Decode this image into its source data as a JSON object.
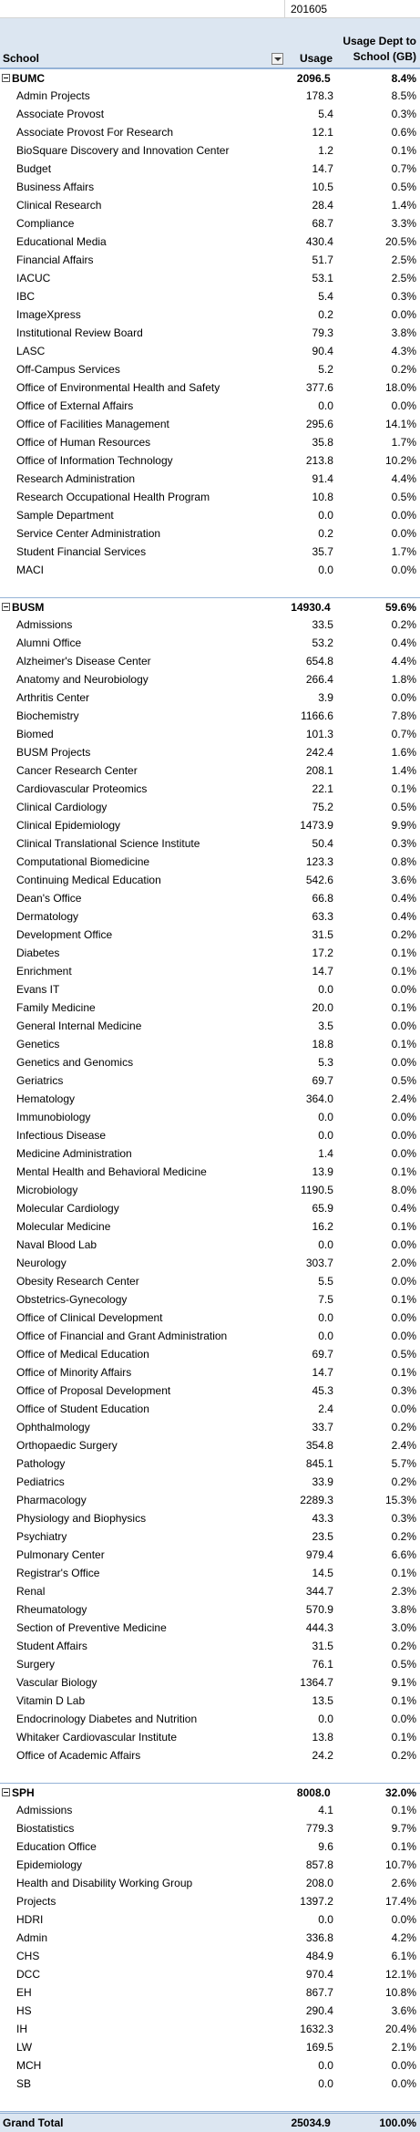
{
  "header": {
    "period": "201605",
    "school": "School",
    "usage": "Usage",
    "pct": "Usage Dept to School (GB)"
  },
  "groups": [
    {
      "name": "BUMC",
      "usage": "2096.5",
      "pct": "8.4%",
      "rows": [
        {
          "name": "Admin Projects",
          "usage": "178.3",
          "pct": "8.5%"
        },
        {
          "name": "Associate Provost",
          "usage": "5.4",
          "pct": "0.3%"
        },
        {
          "name": "Associate Provost For Research",
          "usage": "12.1",
          "pct": "0.6%"
        },
        {
          "name": "BioSquare Discovery and Innovation Center",
          "usage": "1.2",
          "pct": "0.1%"
        },
        {
          "name": "Budget",
          "usage": "14.7",
          "pct": "0.7%"
        },
        {
          "name": "Business Affairs",
          "usage": "10.5",
          "pct": "0.5%"
        },
        {
          "name": "Clinical Research",
          "usage": "28.4",
          "pct": "1.4%"
        },
        {
          "name": "Compliance",
          "usage": "68.7",
          "pct": "3.3%"
        },
        {
          "name": "Educational Media",
          "usage": "430.4",
          "pct": "20.5%"
        },
        {
          "name": "Financial Affairs",
          "usage": "51.7",
          "pct": "2.5%"
        },
        {
          "name": "IACUC",
          "usage": "53.1",
          "pct": "2.5%"
        },
        {
          "name": "IBC",
          "usage": "5.4",
          "pct": "0.3%"
        },
        {
          "name": "ImageXpress",
          "usage": "0.2",
          "pct": "0.0%"
        },
        {
          "name": "Institutional Review Board",
          "usage": "79.3",
          "pct": "3.8%"
        },
        {
          "name": "LASC",
          "usage": "90.4",
          "pct": "4.3%"
        },
        {
          "name": "Off-Campus Services",
          "usage": "5.2",
          "pct": "0.2%"
        },
        {
          "name": "Office of Environmental Health and Safety",
          "usage": "377.6",
          "pct": "18.0%"
        },
        {
          "name": "Office of External Affairs",
          "usage": "0.0",
          "pct": "0.0%"
        },
        {
          "name": "Office of Facilities Management",
          "usage": "295.6",
          "pct": "14.1%"
        },
        {
          "name": "Office of Human Resources",
          "usage": "35.8",
          "pct": "1.7%"
        },
        {
          "name": "Office of Information Technology",
          "usage": "213.8",
          "pct": "10.2%"
        },
        {
          "name": "Research Administration",
          "usage": "91.4",
          "pct": "4.4%"
        },
        {
          "name": "Research Occupational Health Program",
          "usage": "10.8",
          "pct": "0.5%"
        },
        {
          "name": "Sample Department",
          "usage": "0.0",
          "pct": "0.0%"
        },
        {
          "name": "Service Center Administration",
          "usage": "0.2",
          "pct": "0.0%"
        },
        {
          "name": "Student Financial Services",
          "usage": "35.7",
          "pct": "1.7%"
        },
        {
          "name": "MACI",
          "usage": "0.0",
          "pct": "0.0%"
        }
      ]
    },
    {
      "name": "BUSM",
      "usage": "14930.4",
      "pct": "59.6%",
      "rows": [
        {
          "name": "Admissions",
          "usage": "33.5",
          "pct": "0.2%"
        },
        {
          "name": "Alumni Office",
          "usage": "53.2",
          "pct": "0.4%"
        },
        {
          "name": "Alzheimer's Disease Center",
          "usage": "654.8",
          "pct": "4.4%"
        },
        {
          "name": "Anatomy and Neurobiology",
          "usage": "266.4",
          "pct": "1.8%"
        },
        {
          "name": "Arthritis Center",
          "usage": "3.9",
          "pct": "0.0%"
        },
        {
          "name": "Biochemistry",
          "usage": "1166.6",
          "pct": "7.8%"
        },
        {
          "name": "Biomed",
          "usage": "101.3",
          "pct": "0.7%"
        },
        {
          "name": "BUSM Projects",
          "usage": "242.4",
          "pct": "1.6%"
        },
        {
          "name": "Cancer Research Center",
          "usage": "208.1",
          "pct": "1.4%"
        },
        {
          "name": "Cardiovascular Proteomics",
          "usage": "22.1",
          "pct": "0.1%"
        },
        {
          "name": "Clinical Cardiology",
          "usage": "75.2",
          "pct": "0.5%"
        },
        {
          "name": "Clinical Epidemiology",
          "usage": "1473.9",
          "pct": "9.9%"
        },
        {
          "name": "Clinical Translational Science Institute",
          "usage": "50.4",
          "pct": "0.3%"
        },
        {
          "name": "Computational Biomedicine",
          "usage": "123.3",
          "pct": "0.8%"
        },
        {
          "name": "Continuing Medical Education",
          "usage": "542.6",
          "pct": "3.6%"
        },
        {
          "name": "Dean's Office",
          "usage": "66.8",
          "pct": "0.4%"
        },
        {
          "name": "Dermatology",
          "usage": "63.3",
          "pct": "0.4%"
        },
        {
          "name": "Development Office",
          "usage": "31.5",
          "pct": "0.2%"
        },
        {
          "name": "Diabetes",
          "usage": "17.2",
          "pct": "0.1%"
        },
        {
          "name": "Enrichment",
          "usage": "14.7",
          "pct": "0.1%"
        },
        {
          "name": "Evans IT",
          "usage": "0.0",
          "pct": "0.0%"
        },
        {
          "name": "Family Medicine",
          "usage": "20.0",
          "pct": "0.1%"
        },
        {
          "name": "General Internal Medicine",
          "usage": "3.5",
          "pct": "0.0%"
        },
        {
          "name": "Genetics",
          "usage": "18.8",
          "pct": "0.1%"
        },
        {
          "name": "Genetics and Genomics",
          "usage": "5.3",
          "pct": "0.0%"
        },
        {
          "name": "Geriatrics",
          "usage": "69.7",
          "pct": "0.5%"
        },
        {
          "name": "Hematology",
          "usage": "364.0",
          "pct": "2.4%"
        },
        {
          "name": "Immunobiology",
          "usage": "0.0",
          "pct": "0.0%"
        },
        {
          "name": "Infectious Disease",
          "usage": "0.0",
          "pct": "0.0%"
        },
        {
          "name": "Medicine Administration",
          "usage": "1.4",
          "pct": "0.0%"
        },
        {
          "name": "Mental Health and Behavioral Medicine",
          "usage": "13.9",
          "pct": "0.1%"
        },
        {
          "name": "Microbiology",
          "usage": "1190.5",
          "pct": "8.0%"
        },
        {
          "name": "Molecular Cardiology",
          "usage": "65.9",
          "pct": "0.4%"
        },
        {
          "name": "Molecular Medicine",
          "usage": "16.2",
          "pct": "0.1%"
        },
        {
          "name": "Naval Blood Lab",
          "usage": "0.0",
          "pct": "0.0%"
        },
        {
          "name": "Neurology",
          "usage": "303.7",
          "pct": "2.0%"
        },
        {
          "name": "Obesity Research Center",
          "usage": "5.5",
          "pct": "0.0%"
        },
        {
          "name": "Obstetrics-Gynecology",
          "usage": "7.5",
          "pct": "0.1%"
        },
        {
          "name": "Office of Clinical Development",
          "usage": "0.0",
          "pct": "0.0%"
        },
        {
          "name": "Office of Financial and Grant Administration",
          "usage": "0.0",
          "pct": "0.0%"
        },
        {
          "name": "Office of Medical Education",
          "usage": "69.7",
          "pct": "0.5%"
        },
        {
          "name": "Office of Minority Affairs",
          "usage": "14.7",
          "pct": "0.1%"
        },
        {
          "name": "Office of Proposal Development",
          "usage": "45.3",
          "pct": "0.3%"
        },
        {
          "name": "Office of Student Education",
          "usage": "2.4",
          "pct": "0.0%"
        },
        {
          "name": "Ophthalmology",
          "usage": "33.7",
          "pct": "0.2%"
        },
        {
          "name": "Orthopaedic Surgery",
          "usage": "354.8",
          "pct": "2.4%"
        },
        {
          "name": "Pathology",
          "usage": "845.1",
          "pct": "5.7%"
        },
        {
          "name": "Pediatrics",
          "usage": "33.9",
          "pct": "0.2%"
        },
        {
          "name": "Pharmacology",
          "usage": "2289.3",
          "pct": "15.3%"
        },
        {
          "name": "Physiology and Biophysics",
          "usage": "43.3",
          "pct": "0.3%"
        },
        {
          "name": "Psychiatry",
          "usage": "23.5",
          "pct": "0.2%"
        },
        {
          "name": "Pulmonary Center",
          "usage": "979.4",
          "pct": "6.6%"
        },
        {
          "name": "Registrar's Office",
          "usage": "14.5",
          "pct": "0.1%"
        },
        {
          "name": "Renal",
          "usage": "344.7",
          "pct": "2.3%"
        },
        {
          "name": "Rheumatology",
          "usage": "570.9",
          "pct": "3.8%"
        },
        {
          "name": "Section of Preventive Medicine",
          "usage": "444.3",
          "pct": "3.0%"
        },
        {
          "name": "Student Affairs",
          "usage": "31.5",
          "pct": "0.2%"
        },
        {
          "name": "Surgery",
          "usage": "76.1",
          "pct": "0.5%"
        },
        {
          "name": "Vascular Biology",
          "usage": "1364.7",
          "pct": "9.1%"
        },
        {
          "name": "Vitamin D Lab",
          "usage": "13.5",
          "pct": "0.1%"
        },
        {
          "name": "Endocrinology Diabetes and Nutrition",
          "usage": "0.0",
          "pct": "0.0%"
        },
        {
          "name": "Whitaker Cardiovascular Institute",
          "usage": "13.8",
          "pct": "0.1%"
        },
        {
          "name": "Office of Academic Affairs",
          "usage": "24.2",
          "pct": "0.2%"
        }
      ]
    },
    {
      "name": "SPH",
      "usage": "8008.0",
      "pct": "32.0%",
      "rows": [
        {
          "name": "Admissions",
          "usage": "4.1",
          "pct": "0.1%"
        },
        {
          "name": "Biostatistics",
          "usage": "779.3",
          "pct": "9.7%"
        },
        {
          "name": "Education Office",
          "usage": "9.6",
          "pct": "0.1%"
        },
        {
          "name": "Epidemiology",
          "usage": "857.8",
          "pct": "10.7%"
        },
        {
          "name": "Health and Disability Working Group",
          "usage": "208.0",
          "pct": "2.6%"
        },
        {
          "name": "Projects",
          "usage": "1397.2",
          "pct": "17.4%"
        },
        {
          "name": "HDRI",
          "usage": "0.0",
          "pct": "0.0%"
        },
        {
          "name": "Admin",
          "usage": "336.8",
          "pct": "4.2%"
        },
        {
          "name": "CHS",
          "usage": "484.9",
          "pct": "6.1%"
        },
        {
          "name": "DCC",
          "usage": "970.4",
          "pct": "12.1%"
        },
        {
          "name": "EH",
          "usage": "867.7",
          "pct": "10.8%"
        },
        {
          "name": "HS",
          "usage": "290.4",
          "pct": "3.6%"
        },
        {
          "name": "IH",
          "usage": "1632.3",
          "pct": "20.4%"
        },
        {
          "name": "LW",
          "usage": "169.5",
          "pct": "2.1%"
        },
        {
          "name": "MCH",
          "usage": "0.0",
          "pct": "0.0%"
        },
        {
          "name": "SB",
          "usage": "0.0",
          "pct": "0.0%"
        }
      ]
    }
  ],
  "grand_total": {
    "label": "Grand Total",
    "usage": "25034.9",
    "pct": "100.0%"
  }
}
